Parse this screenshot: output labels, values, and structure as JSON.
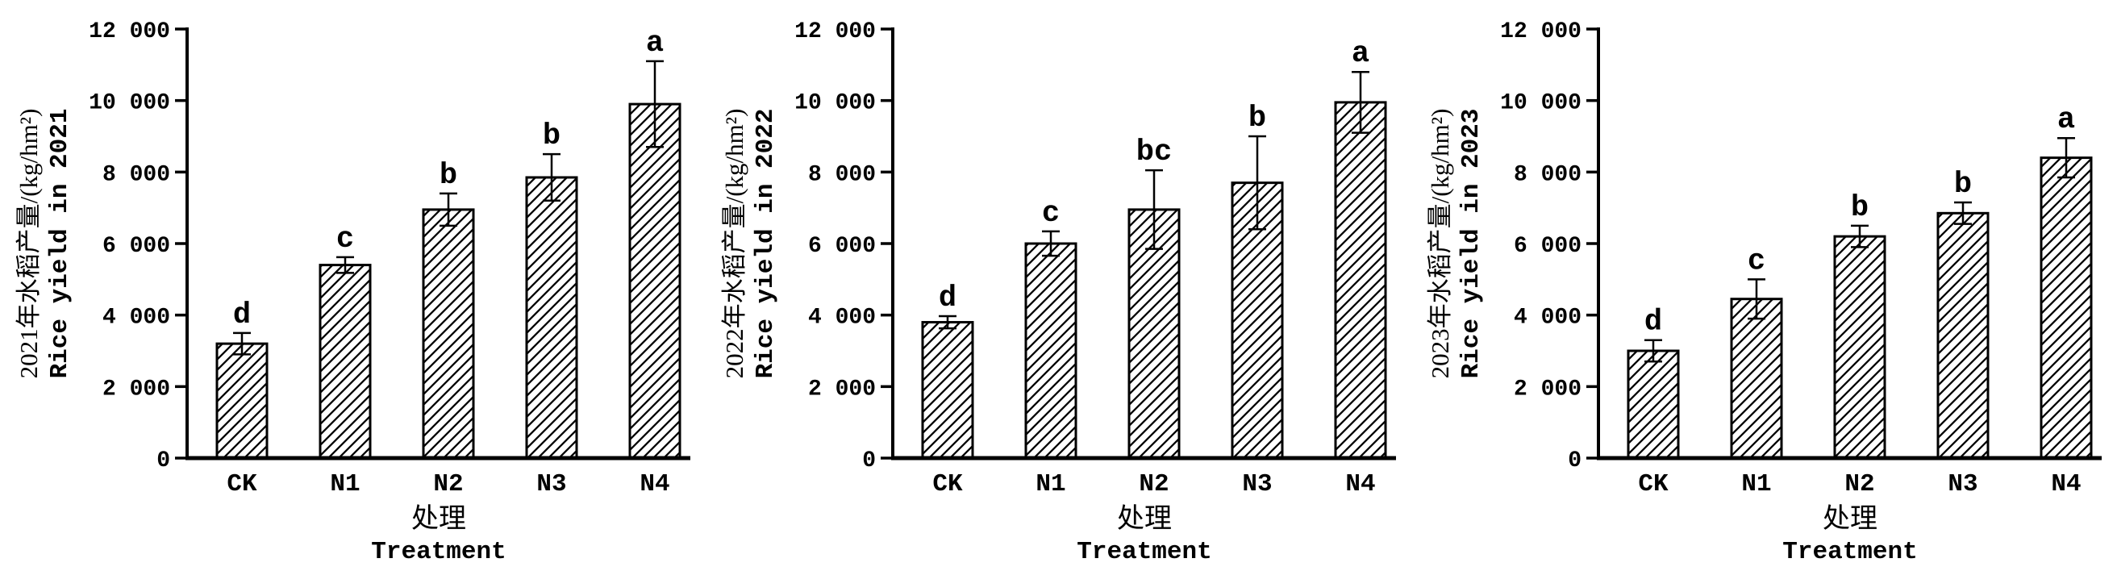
{
  "figure": {
    "background": "#ffffff",
    "ink": "#000000",
    "bar_fill": "#ffffff",
    "hatch_style": "diagonal-forward"
  },
  "chart_data": [
    {
      "type": "bar",
      "categories": [
        "CK",
        "N1",
        "N2",
        "N3",
        "N4"
      ],
      "values": [
        3200,
        5400,
        6950,
        7850,
        9900
      ],
      "errors": [
        300,
        220,
        450,
        650,
        1200
      ],
      "sig_letters": [
        "d",
        "c",
        "b",
        "b",
        "a"
      ],
      "ylabel_cn": "2021年水稻产量/(kg/hm²)",
      "ylabel_en": "Rice yield in 2021",
      "xlabel_cn": "处理",
      "xlabel_en": "Treatment",
      "ylim": [
        0,
        12000
      ],
      "ytick_step": 2000,
      "ytick_labels": [
        "0",
        "2 000",
        "4 000",
        "6 000",
        "8 000",
        "10 000",
        "12 000"
      ],
      "grid": false,
      "legend": null
    },
    {
      "type": "bar",
      "categories": [
        "CK",
        "N1",
        "N2",
        "N3",
        "N4"
      ],
      "values": [
        3800,
        6000,
        6950,
        7700,
        9950
      ],
      "errors": [
        170,
        340,
        1100,
        1300,
        850
      ],
      "sig_letters": [
        "d",
        "c",
        "bc",
        "b",
        "a"
      ],
      "ylabel_cn": "2022年水稻产量/(kg/hm²)",
      "ylabel_en": "Rice yield in 2022",
      "xlabel_cn": "处理",
      "xlabel_en": "Treatment",
      "ylim": [
        0,
        12000
      ],
      "ytick_step": 2000,
      "ytick_labels": [
        "0",
        "2 000",
        "4 000",
        "6 000",
        "8 000",
        "10 000",
        "12 000"
      ],
      "grid": false,
      "legend": null
    },
    {
      "type": "bar",
      "categories": [
        "CK",
        "N1",
        "N2",
        "N3",
        "N4"
      ],
      "values": [
        3000,
        4450,
        6200,
        6850,
        8400
      ],
      "errors": [
        300,
        550,
        300,
        300,
        550
      ],
      "sig_letters": [
        "d",
        "c",
        "b",
        "b",
        "a"
      ],
      "ylabel_cn": "2023年水稻产量/(kg/hm²)",
      "ylabel_en": "Rice yield in 2023",
      "xlabel_cn": "处理",
      "xlabel_en": "Treatment",
      "ylim": [
        0,
        12000
      ],
      "ytick_step": 2000,
      "ytick_labels": [
        "0",
        "2 000",
        "4 000",
        "6 000",
        "8 000",
        "10 000",
        "12 000"
      ],
      "grid": false,
      "legend": null
    }
  ]
}
